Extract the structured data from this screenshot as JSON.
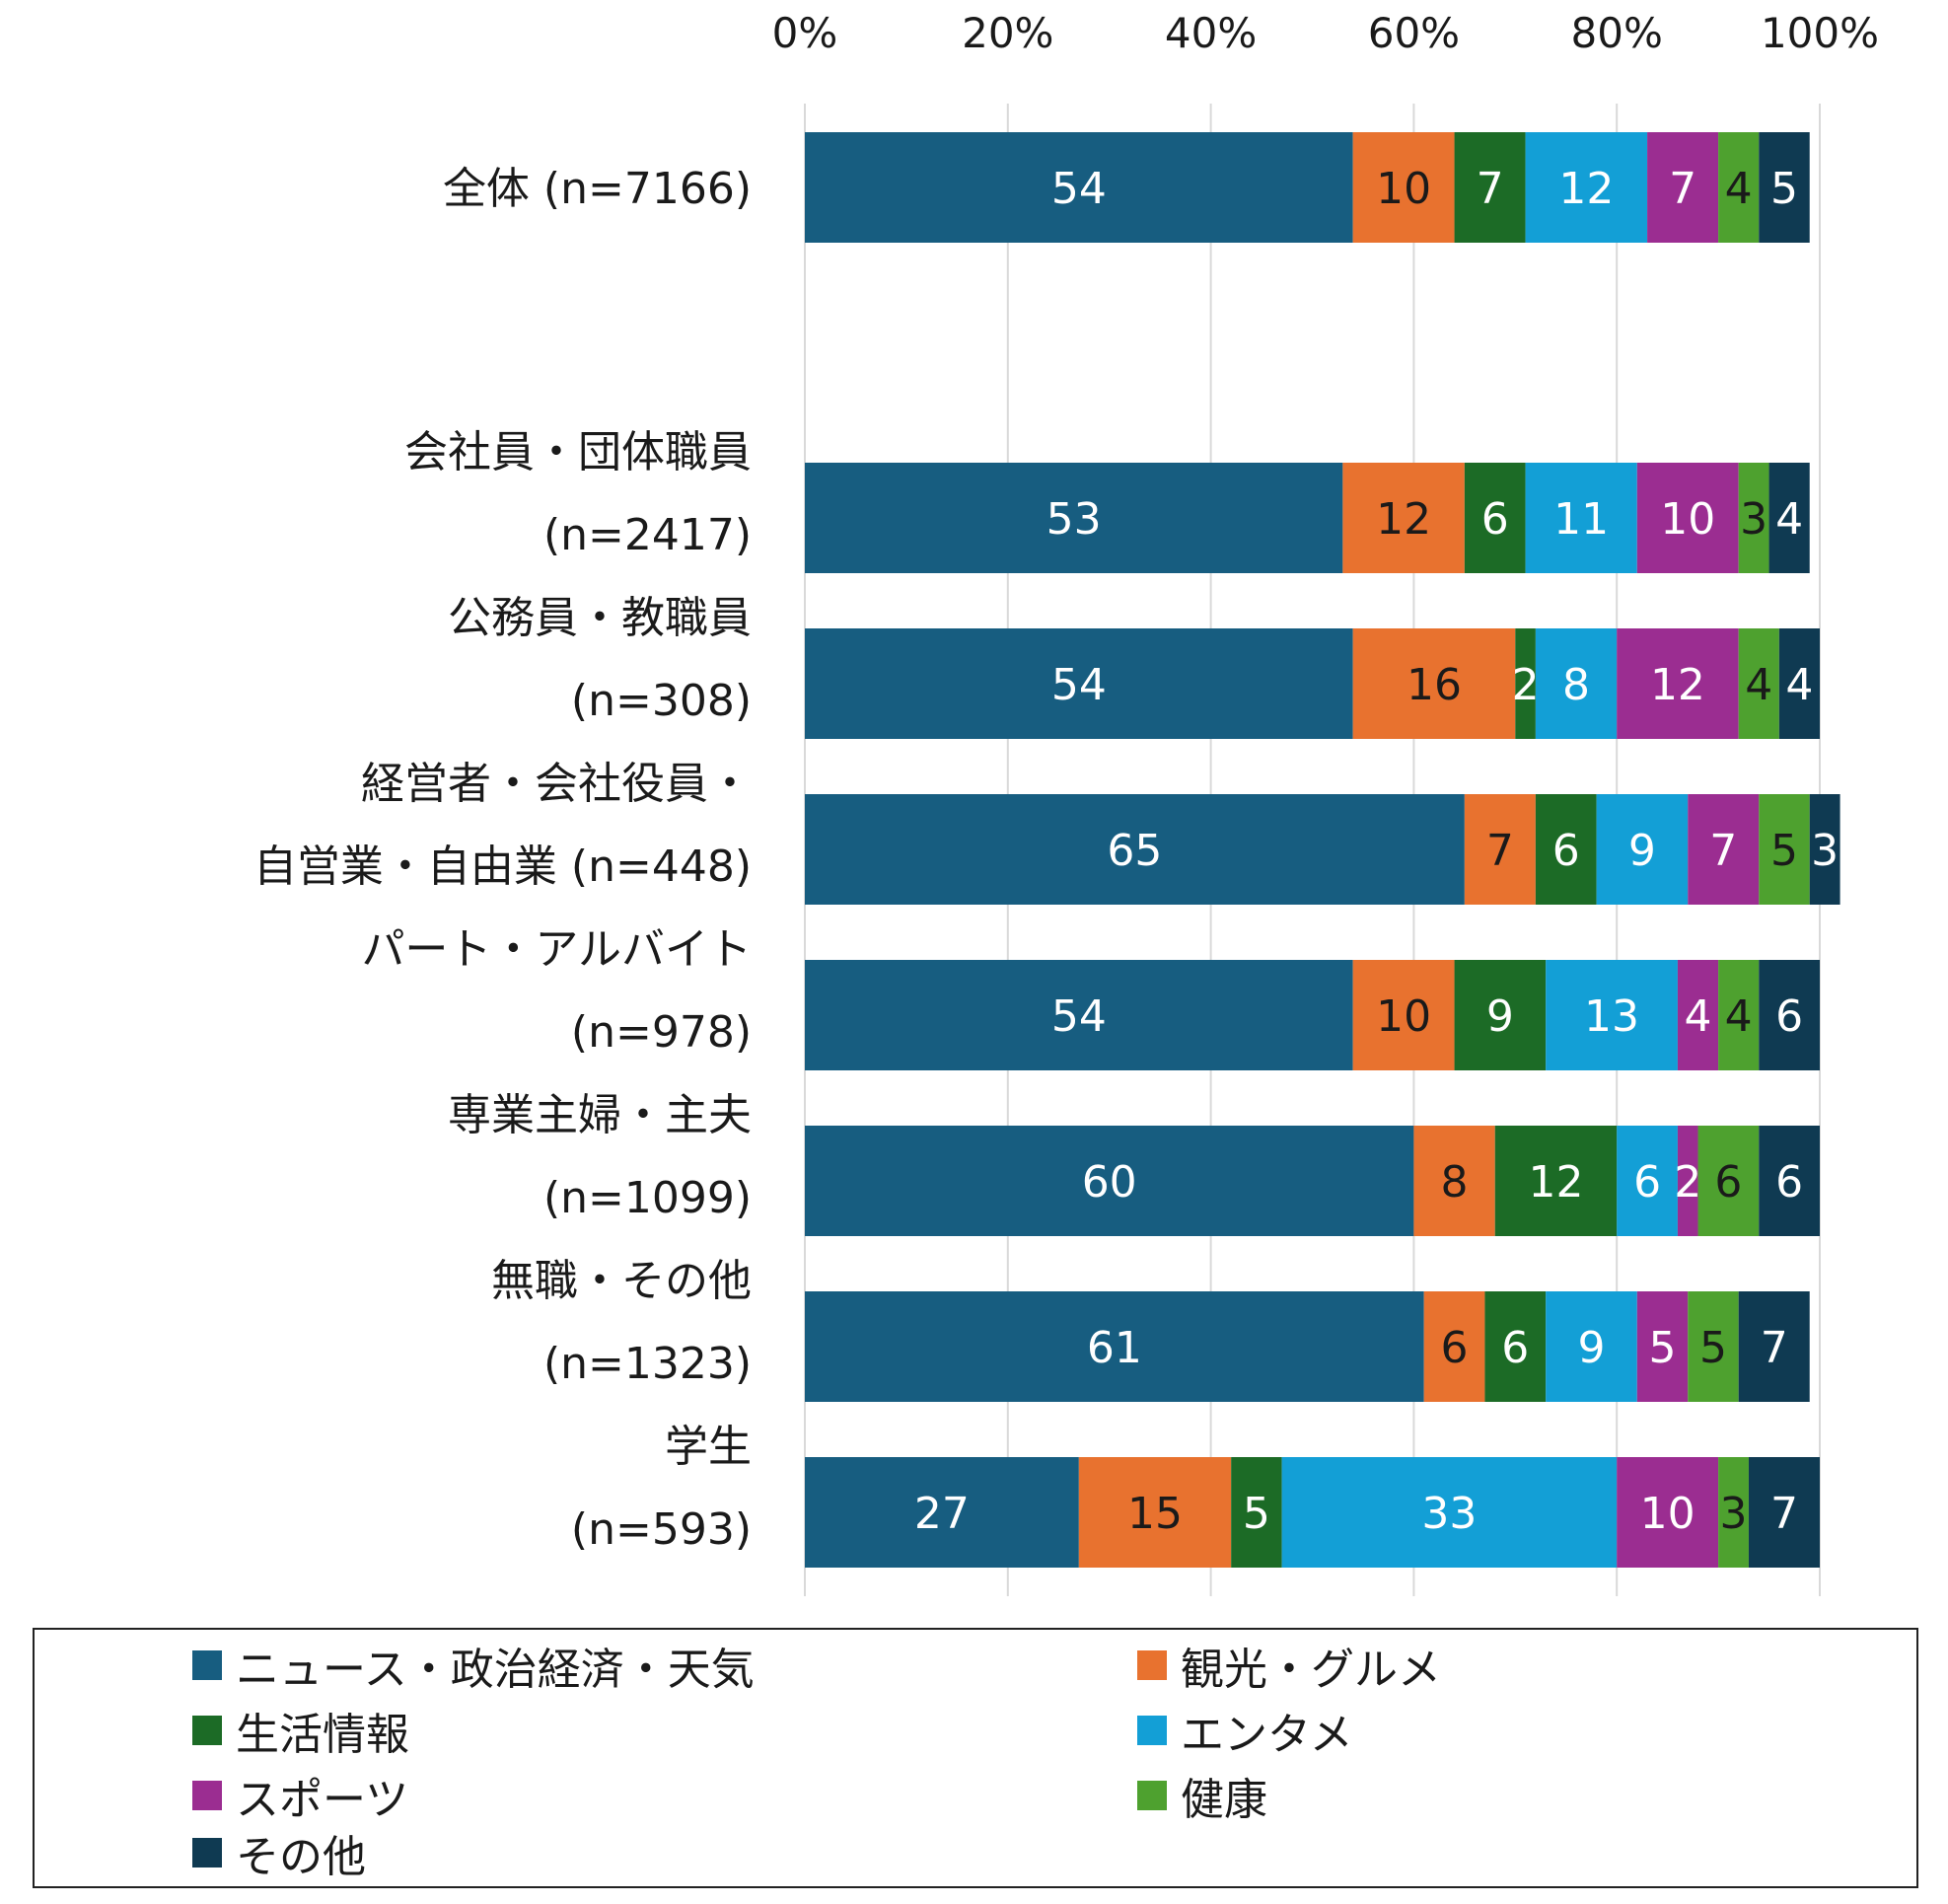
{
  "chart_data": {
    "type": "bar",
    "orientation": "horizontal",
    "stacked": true,
    "value_unit": "%",
    "xlim": [
      0,
      100
    ],
    "x_ticks": [
      "0%",
      "20%",
      "40%",
      "60%",
      "80%",
      "100%"
    ],
    "x_axis_position": "top",
    "grid": true,
    "legend_position": "bottom",
    "categories": [
      [
        "全体 (n=7166)"
      ],
      [
        "会社員・団体職員",
        "(n=2417)"
      ],
      [
        "公務員・教職員",
        "(n=308)"
      ],
      [
        "経営者・会社役員・",
        "自営業・自由業 (n=448)"
      ],
      [
        "パート・アルバイト",
        "(n=978)"
      ],
      [
        "専業主婦・主夫",
        "(n=1099)"
      ],
      [
        "無職・その他",
        "(n=1323)"
      ],
      [
        "学生",
        "(n=593)"
      ]
    ],
    "series": [
      {
        "name": "ニュース・政治経済・天気",
        "color": "#175d80",
        "label_color": "#ffffff",
        "values": [
          54,
          53,
          54,
          65,
          54,
          60,
          61,
          27
        ]
      },
      {
        "name": "観光・グルメ",
        "color": "#e8722f",
        "label_color": "#1a1a1a",
        "values": [
          10,
          12,
          16,
          7,
          10,
          8,
          6,
          15
        ]
      },
      {
        "name": "生活情報",
        "color": "#1c6b26",
        "label_color": "#ffffff",
        "values": [
          7,
          6,
          2,
          6,
          9,
          12,
          6,
          5
        ]
      },
      {
        "name": "エンタメ",
        "color": "#139fd6",
        "label_color": "#ffffff",
        "values": [
          12,
          11,
          8,
          9,
          13,
          6,
          9,
          33
        ]
      },
      {
        "name": "スポーツ",
        "color": "#9b2d91",
        "label_color": "#ffffff",
        "values": [
          7,
          10,
          12,
          7,
          4,
          2,
          5,
          10
        ]
      },
      {
        "name": "健康",
        "color": "#4ea12f",
        "label_color": "#1a1a1a",
        "values": [
          4,
          3,
          4,
          5,
          4,
          6,
          5,
          3
        ]
      },
      {
        "name": "その他",
        "color": "#0f3a52",
        "label_color": "#ffffff",
        "values": [
          5,
          4,
          4,
          3,
          6,
          6,
          7,
          7
        ]
      }
    ]
  },
  "legend": {
    "items": [
      {
        "label": "ニュース・政治経済・天気",
        "color": "#175d80"
      },
      {
        "label": "観光・グルメ",
        "color": "#e8722f"
      },
      {
        "label": "生活情報",
        "color": "#1c6b26"
      },
      {
        "label": "エンタメ",
        "color": "#139fd6"
      },
      {
        "label": "スポーツ",
        "color": "#9b2d91"
      },
      {
        "label": "健康",
        "color": "#4ea12f"
      },
      {
        "label": "その他",
        "color": "#0f3a52"
      }
    ]
  }
}
